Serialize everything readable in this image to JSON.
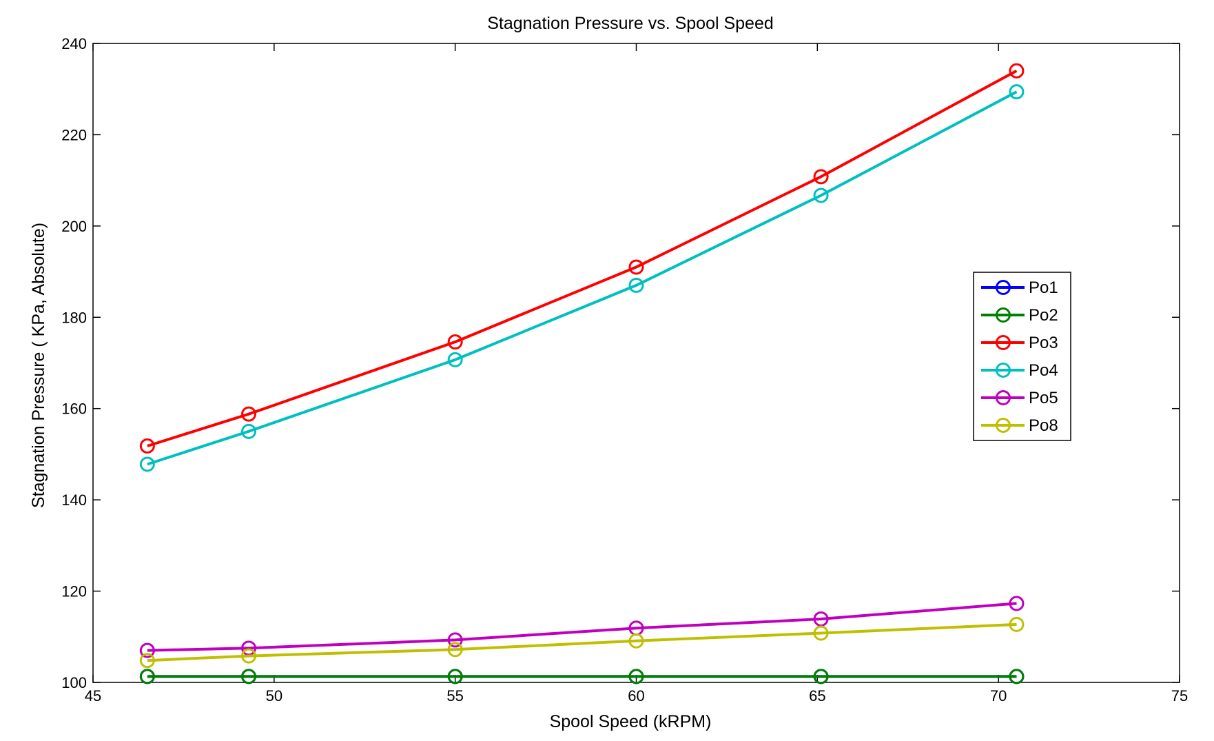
{
  "chart_data": {
    "type": "line",
    "title": "Stagnation Pressure vs. Spool Speed",
    "xlabel": "Spool Speed (kRPM)",
    "ylabel": "Stagnation Pressure ( KPa, Absolute)",
    "xlim": [
      45,
      75
    ],
    "ylim": [
      100,
      240
    ],
    "xticks": [
      45,
      50,
      55,
      60,
      65,
      70,
      75
    ],
    "yticks": [
      100,
      120,
      140,
      160,
      180,
      200,
      220,
      240
    ],
    "grid": false,
    "legend_position": "right",
    "marker": "circle",
    "x": [
      46.5,
      49.3,
      55.0,
      60.0,
      65.1,
      70.5
    ],
    "series": [
      {
        "name": "Po1",
        "color": "#0000ff",
        "values": [
          101.3,
          101.3,
          101.3,
          101.3,
          101.3,
          101.3
        ]
      },
      {
        "name": "Po2",
        "color": "#008000",
        "values": [
          101.3,
          101.3,
          101.3,
          101.3,
          101.3,
          101.3
        ]
      },
      {
        "name": "Po3",
        "color": "#ff0000",
        "values": [
          151.8,
          158.8,
          174.6,
          191.0,
          210.8,
          234.0
        ]
      },
      {
        "name": "Po4",
        "color": "#00bfbf",
        "values": [
          147.8,
          155.0,
          170.7,
          187.0,
          206.7,
          229.4
        ]
      },
      {
        "name": "Po5",
        "color": "#bf00bf",
        "values": [
          107.0,
          107.5,
          109.3,
          111.9,
          113.9,
          117.3
        ]
      },
      {
        "name": "Po8",
        "color": "#bfbf00",
        "values": [
          104.8,
          105.8,
          107.2,
          109.1,
          110.8,
          112.7
        ]
      }
    ]
  }
}
